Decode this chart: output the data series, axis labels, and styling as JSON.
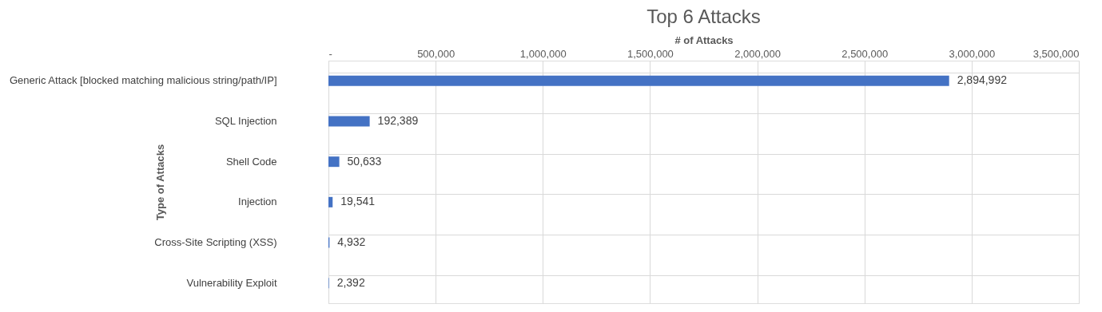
{
  "chart_data": {
    "type": "bar",
    "orientation": "horizontal",
    "title": "Top 6 Attacks",
    "xlabel": "# of Attacks",
    "ylabel": "Type of Attacks",
    "categories": [
      "Generic Attack [blocked matching malicious string/path/IP]",
      "SQL Injection",
      "Shell Code",
      "Injection",
      "Cross-Site Scripting (XSS)",
      "Vulnerability Exploit"
    ],
    "values": [
      2894992,
      192389,
      50633,
      19541,
      4932,
      2392
    ],
    "color": "#4472c4",
    "xlim": [
      0,
      3500000
    ],
    "xticks": [
      {
        "value": 0,
        "label": "-"
      },
      {
        "value": 500000,
        "label": "500,000"
      },
      {
        "value": 1000000,
        "label": "1,000,000"
      },
      {
        "value": 1500000,
        "label": "1,500,000"
      },
      {
        "value": 2000000,
        "label": "2,000,000"
      },
      {
        "value": 2500000,
        "label": "2,500,000"
      },
      {
        "value": 3000000,
        "label": "3,000,000"
      },
      {
        "value": 3500000,
        "label": "3,500,000"
      }
    ],
    "value_labels": [
      "2,894,992",
      "192,389",
      "50,633",
      "19,541",
      "4,932",
      "2,392"
    ],
    "grid": true
  }
}
